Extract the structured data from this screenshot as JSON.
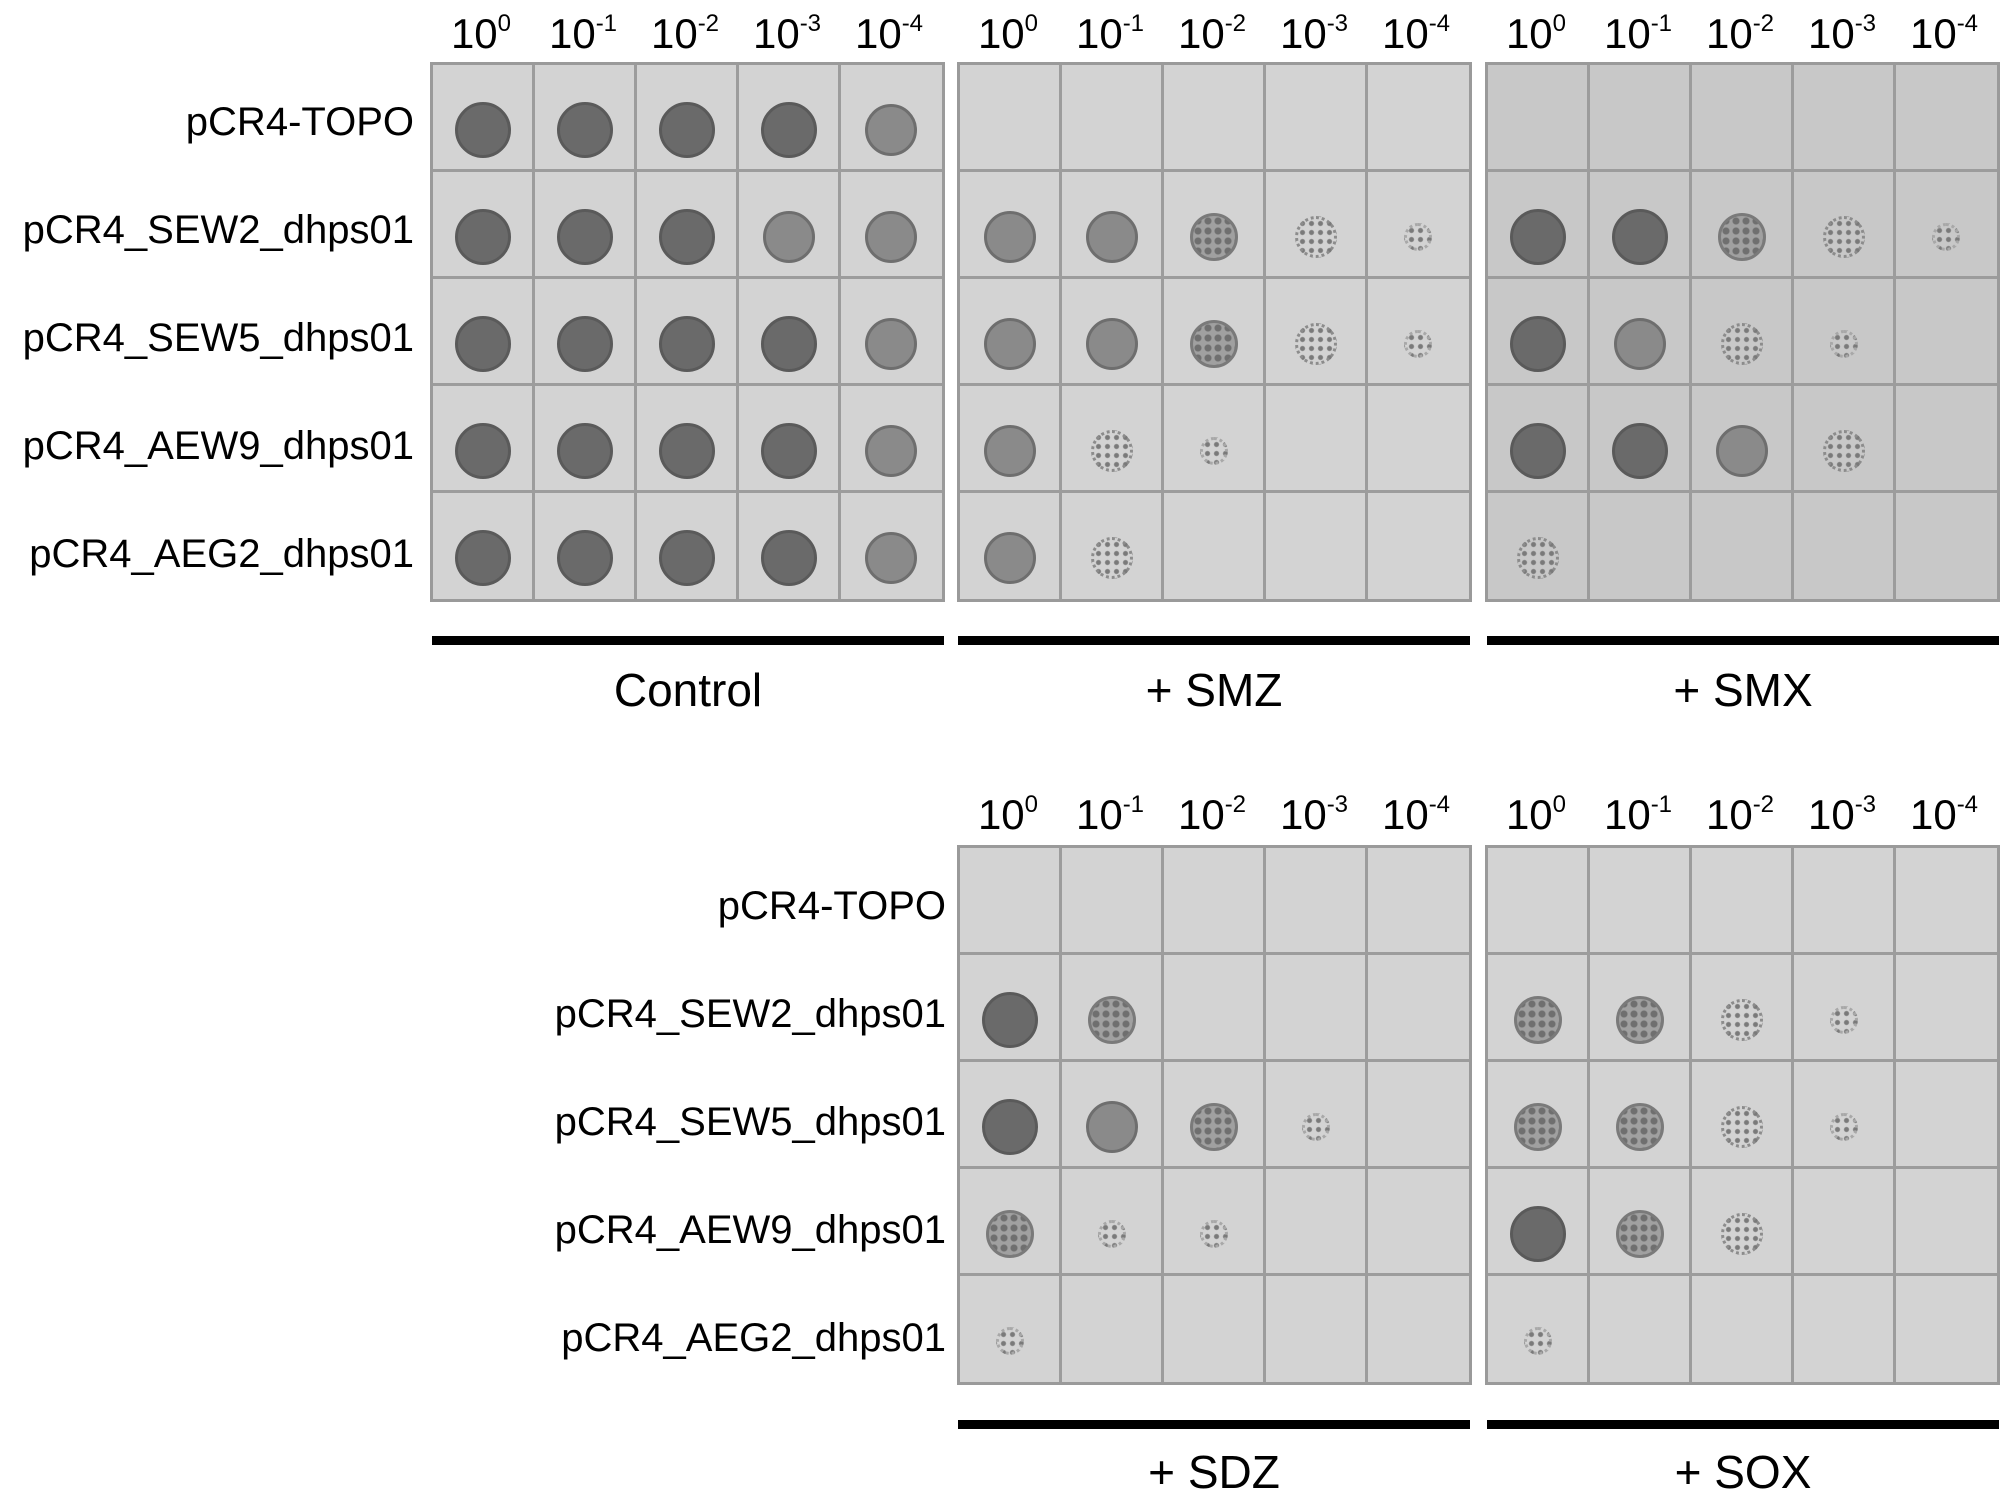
{
  "dilutions": [
    {
      "base": "10",
      "exp": "0"
    },
    {
      "base": "10",
      "exp": "-1"
    },
    {
      "base": "10",
      "exp": "-2"
    },
    {
      "base": "10",
      "exp": "-3"
    },
    {
      "base": "10",
      "exp": "-4"
    }
  ],
  "strains": [
    "pCR4-TOPO",
    "pCR4_SEW2_dhps01",
    "pCR4_SEW5_dhps01",
    "pCR4_AEW9_dhps01",
    "pCR4_AEG2_dhps01"
  ],
  "colors": {
    "plate_bg": "#d3d3d3",
    "plate_bg_dark": "#c8c8c8",
    "grid": "#9c9c9c",
    "growth_dark": "#6a6a6a",
    "growth_mid": "#8a8a8a",
    "growth_faint": "#b5b5b5"
  },
  "plates": [
    {
      "id": "control",
      "condition": "Control",
      "growth": [
        [
          5,
          5,
          5,
          5,
          4
        ],
        [
          5,
          5,
          5,
          4,
          4
        ],
        [
          5,
          5,
          5,
          5,
          4
        ],
        [
          5,
          5,
          5,
          5,
          4
        ],
        [
          5,
          5,
          5,
          5,
          4
        ]
      ]
    },
    {
      "id": "smz",
      "condition": "+ SMZ",
      "growth": [
        [
          0,
          0,
          0,
          0,
          0
        ],
        [
          4,
          4,
          3,
          2,
          1
        ],
        [
          4,
          4,
          3,
          2,
          1
        ],
        [
          4,
          2,
          1,
          0,
          0
        ],
        [
          4,
          2,
          0,
          0,
          0
        ]
      ]
    },
    {
      "id": "smx",
      "condition": "+ SMX",
      "growth": [
        [
          0,
          0,
          0,
          0,
          0
        ],
        [
          5,
          5,
          3,
          2,
          1
        ],
        [
          5,
          4,
          2,
          1,
          0
        ],
        [
          5,
          5,
          4,
          2,
          0
        ],
        [
          2,
          0,
          0,
          0,
          0
        ]
      ]
    },
    {
      "id": "sdz",
      "condition": "+ SDZ",
      "growth": [
        [
          0,
          0,
          0,
          0,
          0
        ],
        [
          5,
          3,
          0,
          0,
          0
        ],
        [
          5,
          4,
          3,
          1,
          0
        ],
        [
          3,
          1,
          1,
          0,
          0
        ],
        [
          1,
          0,
          0,
          0,
          0
        ]
      ]
    },
    {
      "id": "sox",
      "condition": "+ SOX",
      "growth": [
        [
          0,
          0,
          0,
          0,
          0
        ],
        [
          3,
          3,
          2,
          1,
          0
        ],
        [
          3,
          3,
          2,
          1,
          0
        ],
        [
          5,
          3,
          2,
          0,
          0
        ],
        [
          1,
          0,
          0,
          0,
          0
        ]
      ]
    }
  ]
}
